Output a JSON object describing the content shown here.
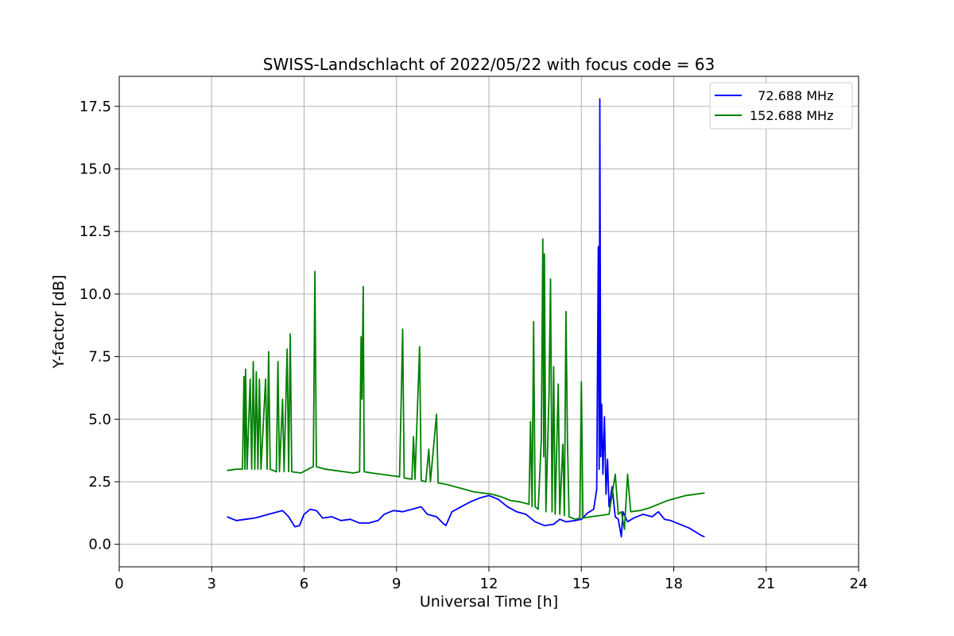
{
  "chart_data": {
    "type": "line",
    "title": "SWISS-Landschlacht of 2022/05/22 with focus code = 63",
    "xlabel": "Universal Time [h]",
    "ylabel": "Y-factor [dB]",
    "xlim": [
      0,
      24
    ],
    "ylim": [
      -0.9,
      18.7
    ],
    "xticks": [
      0,
      3,
      6,
      9,
      12,
      15,
      18,
      21,
      24
    ],
    "xtick_labels": [
      "0",
      "3",
      "6",
      "9",
      "12",
      "15",
      "18",
      "21",
      "24"
    ],
    "yticks": [
      0.0,
      2.5,
      5.0,
      7.5,
      10.0,
      12.5,
      15.0,
      17.5
    ],
    "ytick_labels": [
      "0.0",
      "2.5",
      "5.0",
      "7.5",
      "10.0",
      "12.5",
      "15.0",
      "17.5"
    ],
    "grid": true,
    "legend_position": "top-right",
    "series": [
      {
        "name": "  72.688 MHz",
        "color": "#0000ff",
        "points": [
          [
            3.5,
            1.1
          ],
          [
            3.8,
            0.95
          ],
          [
            4.1,
            1.0
          ],
          [
            4.4,
            1.05
          ],
          [
            4.7,
            1.15
          ],
          [
            5.0,
            1.25
          ],
          [
            5.3,
            1.35
          ],
          [
            5.5,
            1.1
          ],
          [
            5.7,
            0.7
          ],
          [
            5.85,
            0.75
          ],
          [
            6.0,
            1.2
          ],
          [
            6.2,
            1.4
          ],
          [
            6.4,
            1.35
          ],
          [
            6.6,
            1.05
          ],
          [
            6.9,
            1.1
          ],
          [
            7.2,
            0.95
          ],
          [
            7.5,
            1.0
          ],
          [
            7.8,
            0.85
          ],
          [
            8.1,
            0.85
          ],
          [
            8.4,
            0.95
          ],
          [
            8.6,
            1.2
          ],
          [
            8.9,
            1.35
          ],
          [
            9.2,
            1.3
          ],
          [
            9.5,
            1.4
          ],
          [
            9.8,
            1.5
          ],
          [
            10.0,
            1.2
          ],
          [
            10.3,
            1.1
          ],
          [
            10.5,
            0.85
          ],
          [
            10.6,
            0.75
          ],
          [
            10.8,
            1.3
          ],
          [
            11.1,
            1.5
          ],
          [
            11.4,
            1.7
          ],
          [
            11.7,
            1.85
          ],
          [
            12.0,
            1.95
          ],
          [
            12.3,
            1.8
          ],
          [
            12.6,
            1.5
          ],
          [
            12.9,
            1.3
          ],
          [
            13.2,
            1.2
          ],
          [
            13.5,
            0.9
          ],
          [
            13.8,
            0.75
          ],
          [
            14.1,
            0.8
          ],
          [
            14.3,
            1.0
          ],
          [
            14.5,
            0.9
          ],
          [
            14.8,
            0.95
          ],
          [
            15.0,
            1.0
          ],
          [
            15.2,
            1.25
          ],
          [
            15.4,
            1.4
          ],
          [
            15.5,
            2.2
          ],
          [
            15.55,
            11.9
          ],
          [
            15.58,
            3.0
          ],
          [
            15.6,
            17.8
          ],
          [
            15.63,
            3.5
          ],
          [
            15.66,
            5.6
          ],
          [
            15.7,
            2.8
          ],
          [
            15.75,
            5.1
          ],
          [
            15.8,
            2.0
          ],
          [
            15.85,
            3.4
          ],
          [
            15.9,
            1.5
          ],
          [
            16.0,
            2.3
          ],
          [
            16.1,
            1.1
          ],
          [
            16.2,
            1.0
          ],
          [
            16.3,
            0.3
          ],
          [
            16.35,
            1.3
          ],
          [
            16.5,
            0.9
          ],
          [
            16.7,
            1.05
          ],
          [
            17.0,
            1.2
          ],
          [
            17.3,
            1.1
          ],
          [
            17.5,
            1.3
          ],
          [
            17.7,
            1.0
          ],
          [
            17.9,
            0.95
          ],
          [
            18.1,
            0.85
          ],
          [
            18.3,
            0.75
          ],
          [
            18.5,
            0.65
          ],
          [
            18.7,
            0.5
          ],
          [
            18.9,
            0.35
          ],
          [
            19.0,
            0.3
          ]
        ]
      },
      {
        "name": "152.688 MHz",
        "color": "#008000",
        "points": [
          [
            3.5,
            2.95
          ],
          [
            3.8,
            3.0
          ],
          [
            4.0,
            3.0
          ],
          [
            4.05,
            6.7
          ],
          [
            4.08,
            3.0
          ],
          [
            4.1,
            7.0
          ],
          [
            4.15,
            3.0
          ],
          [
            4.25,
            6.6
          ],
          [
            4.3,
            3.0
          ],
          [
            4.35,
            7.3
          ],
          [
            4.4,
            3.0
          ],
          [
            4.45,
            6.9
          ],
          [
            4.5,
            3.0
          ],
          [
            4.55,
            6.6
          ],
          [
            4.6,
            3.0
          ],
          [
            4.75,
            6.6
          ],
          [
            4.8,
            3.0
          ],
          [
            4.85,
            7.7
          ],
          [
            4.9,
            3.0
          ],
          [
            5.1,
            2.9
          ],
          [
            5.15,
            7.3
          ],
          [
            5.2,
            2.9
          ],
          [
            5.3,
            5.8
          ],
          [
            5.35,
            2.9
          ],
          [
            5.45,
            7.8
          ],
          [
            5.5,
            2.9
          ],
          [
            5.55,
            8.4
          ],
          [
            5.6,
            2.9
          ],
          [
            5.9,
            2.85
          ],
          [
            6.2,
            3.05
          ],
          [
            6.3,
            3.1
          ],
          [
            6.35,
            10.9
          ],
          [
            6.4,
            3.1
          ],
          [
            6.7,
            3.0
          ],
          [
            7.0,
            2.95
          ],
          [
            7.3,
            2.9
          ],
          [
            7.6,
            2.85
          ],
          [
            7.8,
            2.9
          ],
          [
            7.85,
            8.3
          ],
          [
            7.88,
            5.8
          ],
          [
            7.92,
            10.3
          ],
          [
            7.95,
            2.9
          ],
          [
            8.2,
            2.85
          ],
          [
            8.5,
            2.8
          ],
          [
            8.8,
            2.75
          ],
          [
            9.1,
            2.7
          ],
          [
            9.2,
            8.6
          ],
          [
            9.25,
            2.65
          ],
          [
            9.5,
            2.6
          ],
          [
            9.55,
            4.3
          ],
          [
            9.6,
            2.6
          ],
          [
            9.75,
            7.9
          ],
          [
            9.8,
            2.55
          ],
          [
            9.95,
            2.5
          ],
          [
            10.05,
            3.8
          ],
          [
            10.1,
            2.5
          ],
          [
            10.3,
            5.2
          ],
          [
            10.35,
            2.45
          ],
          [
            10.6,
            2.4
          ],
          [
            10.9,
            2.3
          ],
          [
            11.2,
            2.2
          ],
          [
            11.5,
            2.1
          ],
          [
            11.8,
            2.05
          ],
          [
            12.1,
            2.0
          ],
          [
            12.4,
            1.9
          ],
          [
            12.7,
            1.75
          ],
          [
            13.0,
            1.7
          ],
          [
            13.3,
            1.6
          ],
          [
            13.35,
            4.9
          ],
          [
            13.4,
            1.5
          ],
          [
            13.45,
            8.9
          ],
          [
            13.5,
            1.5
          ],
          [
            13.6,
            1.4
          ],
          [
            13.7,
            4.2
          ],
          [
            13.75,
            12.2
          ],
          [
            13.78,
            3.5
          ],
          [
            13.8,
            11.6
          ],
          [
            13.85,
            1.3
          ],
          [
            13.95,
            6.0
          ],
          [
            14.0,
            10.6
          ],
          [
            14.05,
            1.3
          ],
          [
            14.1,
            7.1
          ],
          [
            14.15,
            1.2
          ],
          [
            14.25,
            6.4
          ],
          [
            14.3,
            1.2
          ],
          [
            14.4,
            4.0
          ],
          [
            14.45,
            1.15
          ],
          [
            14.5,
            9.3
          ],
          [
            14.55,
            4.1
          ],
          [
            14.6,
            1.1
          ],
          [
            14.8,
            1.0
          ],
          [
            14.95,
            1.05
          ],
          [
            15.0,
            6.5
          ],
          [
            15.05,
            1.05
          ],
          [
            15.3,
            1.1
          ],
          [
            15.6,
            1.15
          ],
          [
            15.9,
            1.2
          ],
          [
            16.1,
            2.8
          ],
          [
            16.2,
            1.2
          ],
          [
            16.3,
            1.3
          ],
          [
            16.4,
            0.6
          ],
          [
            16.5,
            2.8
          ],
          [
            16.6,
            1.3
          ],
          [
            16.9,
            1.35
          ],
          [
            17.2,
            1.45
          ],
          [
            17.5,
            1.6
          ],
          [
            17.8,
            1.75
          ],
          [
            18.1,
            1.85
          ],
          [
            18.4,
            1.95
          ],
          [
            18.7,
            2.0
          ],
          [
            19.0,
            2.05
          ]
        ]
      }
    ]
  }
}
